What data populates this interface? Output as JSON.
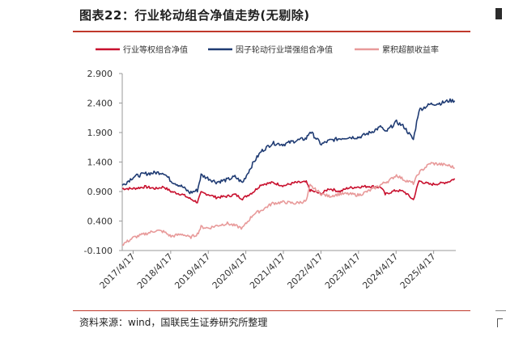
{
  "header": {
    "title": "图表22：行业轮动组合净值走势(无剔除)"
  },
  "footer": {
    "source": "资料来源：wind，国联民生证券研究所整理"
  },
  "chart_data": {
    "type": "line",
    "title": "",
    "xlabel": "",
    "ylabel": "",
    "ylim": [
      -0.1,
      2.9
    ],
    "yticks": [
      -0.1,
      0.4,
      0.9,
      1.4,
      1.9,
      2.4,
      2.9
    ],
    "ytick_labels": [
      "-0.100",
      "0.400",
      "0.900",
      "1.400",
      "1.900",
      "2.400",
      "2.900"
    ],
    "xlim": [
      2017.0,
      2025.88
    ],
    "xticks": [
      2017.29,
      2018.29,
      2019.29,
      2020.29,
      2021.29,
      2022.29,
      2023.29,
      2024.29,
      2025.29
    ],
    "xtick_labels": [
      "2017/4/17",
      "2018/4/17",
      "2019/4/17",
      "2020/4/17",
      "2021/4/17",
      "2022/4/17",
      "2023/4/17",
      "2024/4/17",
      "2025/4/17"
    ],
    "grid": false,
    "legend_position": "top",
    "series": [
      {
        "name": "行业等权组合净值",
        "color": "#c8102e",
        "x": [
          2017.0,
          2017.3,
          2017.6,
          2017.9,
          2018.1,
          2018.3,
          2018.6,
          2018.8,
          2019.0,
          2019.1,
          2019.3,
          2019.5,
          2019.8,
          2020.0,
          2020.2,
          2020.5,
          2020.7,
          2021.0,
          2021.3,
          2021.6,
          2021.9,
          2022.0,
          2022.3,
          2022.5,
          2022.8,
          2023.0,
          2023.3,
          2023.6,
          2023.9,
          2024.0,
          2024.1,
          2024.3,
          2024.5,
          2024.75,
          2024.9,
          2025.2,
          2025.5,
          2025.7,
          2025.85
        ],
        "values": [
          0.95,
          0.95,
          0.98,
          0.95,
          0.98,
          0.9,
          0.85,
          0.78,
          0.72,
          0.88,
          0.85,
          0.8,
          0.82,
          0.85,
          0.78,
          0.9,
          1.02,
          1.05,
          1.0,
          1.05,
          1.06,
          0.92,
          0.86,
          0.95,
          0.9,
          0.96,
          0.98,
          0.99,
          0.97,
          0.85,
          0.88,
          0.92,
          0.9,
          0.76,
          1.08,
          1.02,
          1.04,
          1.07,
          1.12
        ]
      },
      {
        "name": "因子轮动行业增强组合净值",
        "color": "#1f3b73",
        "x": [
          2017.0,
          2017.3,
          2017.6,
          2017.9,
          2018.1,
          2018.3,
          2018.6,
          2018.8,
          2019.0,
          2019.1,
          2019.3,
          2019.5,
          2019.8,
          2020.0,
          2020.2,
          2020.5,
          2020.7,
          2021.0,
          2021.3,
          2021.6,
          2021.9,
          2022.0,
          2022.3,
          2022.5,
          2022.8,
          2023.0,
          2023.3,
          2023.6,
          2023.9,
          2024.0,
          2024.1,
          2024.3,
          2024.5,
          2024.75,
          2024.9,
          2025.2,
          2025.5,
          2025.7,
          2025.85
        ],
        "values": [
          1.0,
          1.15,
          1.2,
          1.22,
          1.22,
          1.08,
          0.98,
          0.88,
          0.92,
          1.18,
          1.12,
          1.06,
          1.1,
          1.15,
          1.05,
          1.4,
          1.58,
          1.72,
          1.7,
          1.76,
          1.8,
          1.92,
          1.7,
          1.76,
          1.8,
          1.82,
          1.82,
          1.9,
          2.0,
          1.9,
          1.96,
          2.08,
          2.0,
          1.78,
          2.28,
          2.38,
          2.4,
          2.44,
          2.44
        ]
      },
      {
        "name": "累积超额收益率",
        "color": "#e89a9a",
        "x": [
          2017.0,
          2017.3,
          2017.6,
          2017.9,
          2018.1,
          2018.3,
          2018.6,
          2018.8,
          2019.0,
          2019.1,
          2019.3,
          2019.5,
          2019.8,
          2020.0,
          2020.2,
          2020.5,
          2020.7,
          2021.0,
          2021.3,
          2021.6,
          2021.9,
          2022.0,
          2022.3,
          2022.5,
          2022.8,
          2023.0,
          2023.3,
          2023.6,
          2023.9,
          2024.0,
          2024.1,
          2024.3,
          2024.5,
          2024.75,
          2024.9,
          2025.2,
          2025.5,
          2025.7,
          2025.85
        ],
        "values": [
          0.0,
          0.12,
          0.18,
          0.24,
          0.22,
          0.14,
          0.18,
          0.12,
          0.18,
          0.3,
          0.28,
          0.32,
          0.36,
          0.32,
          0.28,
          0.52,
          0.58,
          0.7,
          0.72,
          0.7,
          0.74,
          1.0,
          0.86,
          0.82,
          0.86,
          0.86,
          0.84,
          0.92,
          1.02,
          1.06,
          1.08,
          1.18,
          1.1,
          1.04,
          1.22,
          1.38,
          1.36,
          1.34,
          1.3
        ]
      }
    ]
  }
}
